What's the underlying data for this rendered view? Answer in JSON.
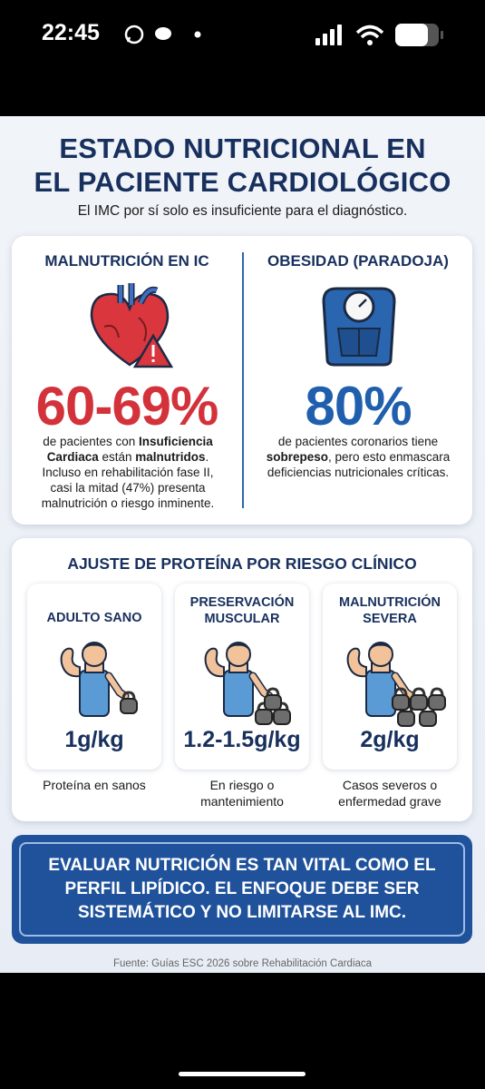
{
  "status": {
    "time": "22:45"
  },
  "header": {
    "title_lines": [
      "ESTADO NUTRICIONAL EN",
      "EL PACIENTE CARDIOLÓGICO"
    ],
    "subtitle": "El IMC por sí solo es insuficiente para el diagnóstico."
  },
  "panels": [
    {
      "heading": "MALNUTRICIÓN EN IC",
      "stat": "60-69%",
      "description": [
        "de pacientes con ",
        "Insuficiencia Cardiaca",
        " están ",
        "malnutridos",
        ". Incluso en rehabilitación fase II, casi la mitad (47%) presenta malnutrición o riesgo inminente."
      ]
    },
    {
      "heading": "OBESIDAD (PARADOJA)",
      "stat": "80%",
      "description": [
        "de pacientes coronarios tiene ",
        "sobrepeso",
        ", pero esto enmascara deficiencias nutricionales críticas."
      ]
    }
  ],
  "protein": {
    "heading": "AJUSTE DE PROTEÍNA POR RIESGO CLÍNICO",
    "cards": [
      {
        "title": "ADULTO SANO",
        "dose": "1g/kg",
        "note": "Proteína en sanos"
      },
      {
        "title": "PRESERVACIÓN MUSCULAR",
        "dose": "1.2-1.5g/kg",
        "note": "En riesgo o mantenimiento"
      },
      {
        "title": "MALNUTRICIÓN SEVERA",
        "dose": "2g/kg",
        "note": "Casos severos o enfermedad grave"
      }
    ]
  },
  "callout": "EVALUAR NUTRICIÓN ES TAN VITAL COMO EL PERFIL LIPÍDICO. EL ENFOQUE DEBE SER SISTEMÁTICO Y NO LIMITARSE AL IMC.",
  "source": "Fuente: Guías ESC 2026 sobre Rehabilitación Cardiaca"
}
